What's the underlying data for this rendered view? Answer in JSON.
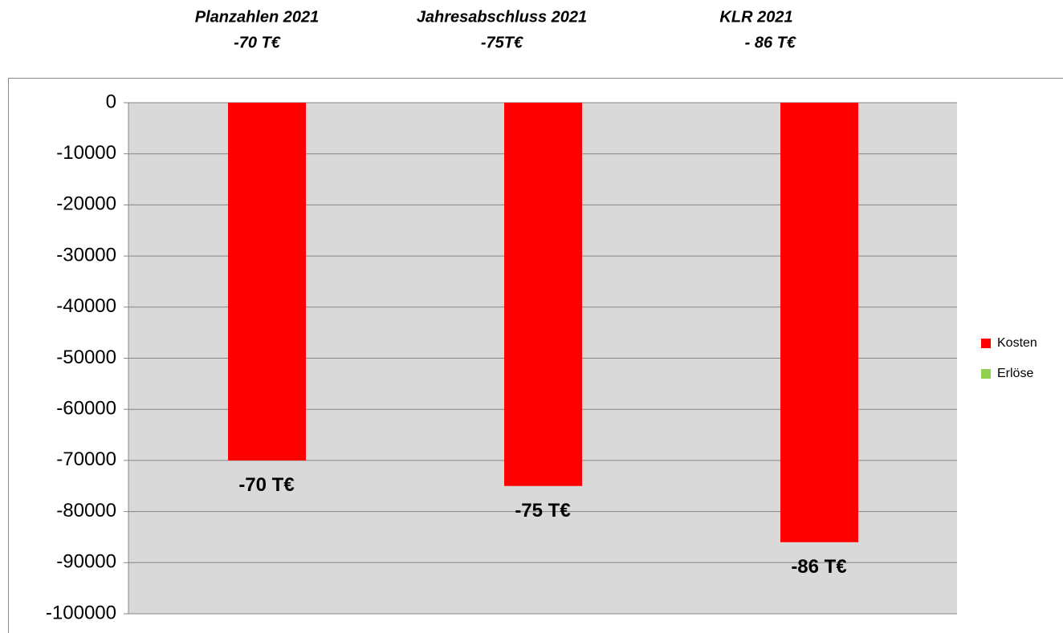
{
  "chart_data": {
    "type": "bar",
    "annotations": [
      {
        "title": "Planzahlen 2021",
        "value_text": "-70 T€"
      },
      {
        "title": "Jahresabschluss 2021",
        "value_text": "-75T€"
      },
      {
        "title": "KLR 2021",
        "value_text": "- 86 T€"
      }
    ],
    "categories": [
      null,
      null,
      null
    ],
    "series": [
      {
        "name": "Kosten",
        "color": "#ff0000",
        "values": [
          -70000,
          -75000,
          -86000
        ],
        "value_labels": [
          "-70 T€",
          "-75 T€",
          "-86 T€"
        ]
      },
      {
        "name": "Erlöse",
        "color": "#92d050",
        "values": [
          null,
          null,
          null
        ]
      }
    ],
    "ylim": [
      -100000,
      0
    ],
    "yticks": [
      0,
      -10000,
      -20000,
      -30000,
      -40000,
      -50000,
      -60000,
      -70000,
      -80000,
      -90000,
      -100000
    ],
    "grid": true,
    "legend": "right"
  }
}
